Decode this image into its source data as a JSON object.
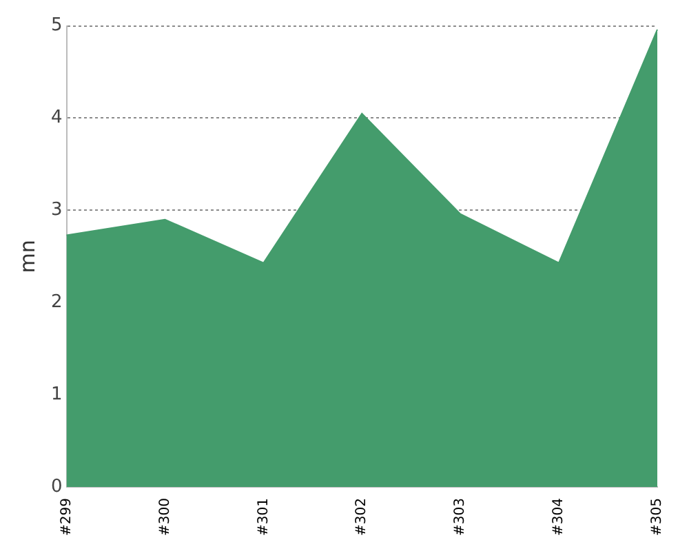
{
  "chart_data": {
    "type": "area",
    "ylabel": "mn",
    "categories": [
      "#299",
      "#300",
      "#301",
      "#302",
      "#303",
      "#304",
      "#305"
    ],
    "series": [
      {
        "color": "#449c6c",
        "values": [
          2.73,
          2.9,
          2.43,
          4.05,
          2.96,
          2.43,
          4.96
        ]
      }
    ],
    "ylim": [
      0,
      5
    ],
    "yticks": [
      0,
      1,
      2,
      3,
      4,
      5
    ],
    "grid": "y",
    "legend": false
  }
}
